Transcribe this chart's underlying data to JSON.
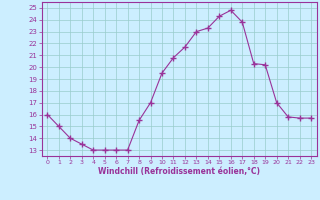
{
  "x": [
    0,
    1,
    2,
    3,
    4,
    5,
    6,
    7,
    8,
    9,
    10,
    11,
    12,
    13,
    14,
    15,
    16,
    17,
    18,
    19,
    20,
    21,
    22,
    23
  ],
  "y": [
    16,
    15,
    14,
    13.5,
    13,
    13,
    13,
    13,
    15.5,
    17,
    19.5,
    20.8,
    21.7,
    23,
    23.3,
    24.3,
    24.8,
    23.8,
    20.3,
    20.2,
    17,
    15.8,
    15.7,
    15.7
  ],
  "line_color": "#993399",
  "marker": "+",
  "marker_size": 4,
  "bg_color": "#cceeff",
  "grid_color": "#99cccc",
  "xlabel": "Windchill (Refroidissement éolien,°C)",
  "ylabel": "",
  "xlim": [
    -0.5,
    23.5
  ],
  "ylim": [
    12.5,
    25.5
  ],
  "yticks": [
    13,
    14,
    15,
    16,
    17,
    18,
    19,
    20,
    21,
    22,
    23,
    24,
    25
  ],
  "xticks": [
    0,
    1,
    2,
    3,
    4,
    5,
    6,
    7,
    8,
    9,
    10,
    11,
    12,
    13,
    14,
    15,
    16,
    17,
    18,
    19,
    20,
    21,
    22,
    23
  ],
  "spine_color": "#993399",
  "axis_label_color": "#993399",
  "tick_color": "#993399"
}
